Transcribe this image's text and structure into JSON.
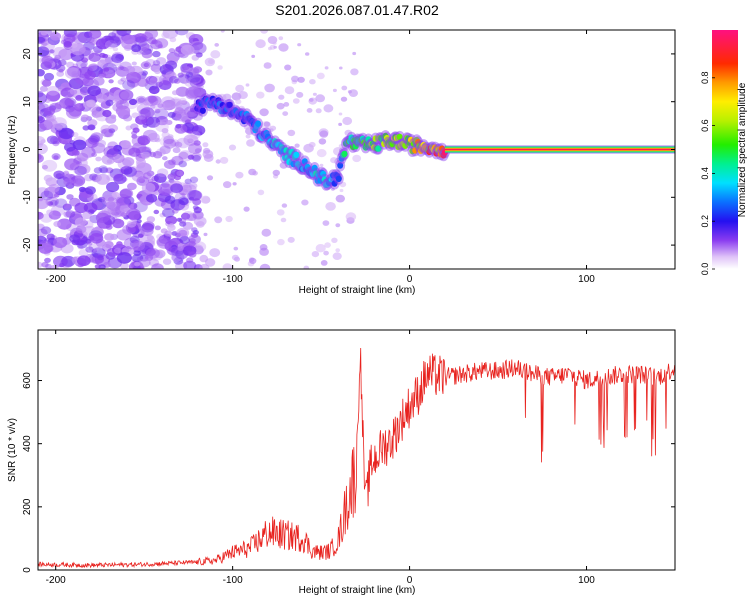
{
  "title": "S201.2026.087.01.47.R02",
  "chart_data": [
    {
      "type": "heatmap",
      "name": "spectrogram",
      "xlabel": "Height of straight line (km)",
      "ylabel": "Frequency (Hz)",
      "xlim": [
        -210,
        150
      ],
      "ylim": [
        -25,
        25
      ],
      "x_ticks": [
        -200,
        -100,
        0,
        100
      ],
      "y_ticks": [
        -20,
        -10,
        0,
        10,
        20
      ],
      "x_tick_labels": [
        "-200",
        "-100",
        "0",
        "100"
      ],
      "y_tick_labels": [
        "-20",
        "-10",
        "0",
        "10",
        "20"
      ],
      "colorbar": {
        "label": "Normalized spectral amplitude",
        "range": [
          0,
          1
        ],
        "ticks": [
          0.0,
          0.2,
          0.4,
          0.6,
          0.8
        ],
        "tick_labels": [
          "0.0",
          "0.2",
          "0.4",
          "0.6",
          "0.8"
        ]
      },
      "ridge": {
        "x": [
          -120,
          -110,
          -100,
          -90,
          -80,
          -70,
          -60,
          -50,
          -45,
          -40,
          -35,
          -30,
          -20,
          -10,
          0,
          10,
          20
        ],
        "y": [
          9,
          10,
          8,
          6,
          2,
          -1,
          -3,
          -6,
          -7,
          -5,
          2,
          1,
          1,
          2,
          1,
          0.5,
          0
        ],
        "amplitude": [
          0.2,
          0.3,
          0.25,
          0.3,
          0.35,
          0.4,
          0.35,
          0.4,
          0.35,
          0.3,
          0.5,
          0.55,
          0.6,
          0.65,
          0.7,
          0.8,
          0.9
        ]
      },
      "carrier": {
        "x_start": 20,
        "x_end": 150,
        "freq": 0,
        "amplitude": 0.95
      }
    },
    {
      "type": "line",
      "name": "snr",
      "xlabel": "Height of straight line (km)",
      "ylabel": "SNR (10 * v/v)",
      "xlim": [
        -210,
        150
      ],
      "ylim": [
        0,
        760
      ],
      "x_ticks": [
        -200,
        -100,
        0,
        100
      ],
      "y_ticks": [
        0,
        200,
        400,
        600
      ],
      "x_tick_labels": [
        "-200",
        "-100",
        "0",
        "100"
      ],
      "y_tick_labels": [
        "0",
        "200",
        "400",
        "600"
      ],
      "color": "#e8231f",
      "x": [
        -210,
        -180,
        -150,
        -120,
        -110,
        -100,
        -90,
        -80,
        -70,
        -60,
        -55,
        -50,
        -45,
        -40,
        -35,
        -30,
        -28,
        -25,
        -22,
        -20,
        -15,
        -10,
        -5,
        0,
        5,
        10,
        20,
        30,
        40,
        50,
        60,
        70,
        80,
        90,
        100,
        110,
        120,
        130,
        140,
        150
      ],
      "y": [
        18,
        15,
        18,
        25,
        30,
        55,
        70,
        120,
        110,
        100,
        60,
        55,
        60,
        100,
        220,
        330,
        700,
        200,
        330,
        350,
        390,
        410,
        470,
        520,
        560,
        620,
        610,
        620,
        630,
        630,
        640,
        620,
        610,
        620,
        600,
        610,
        620,
        620,
        610,
        640
      ]
    }
  ]
}
